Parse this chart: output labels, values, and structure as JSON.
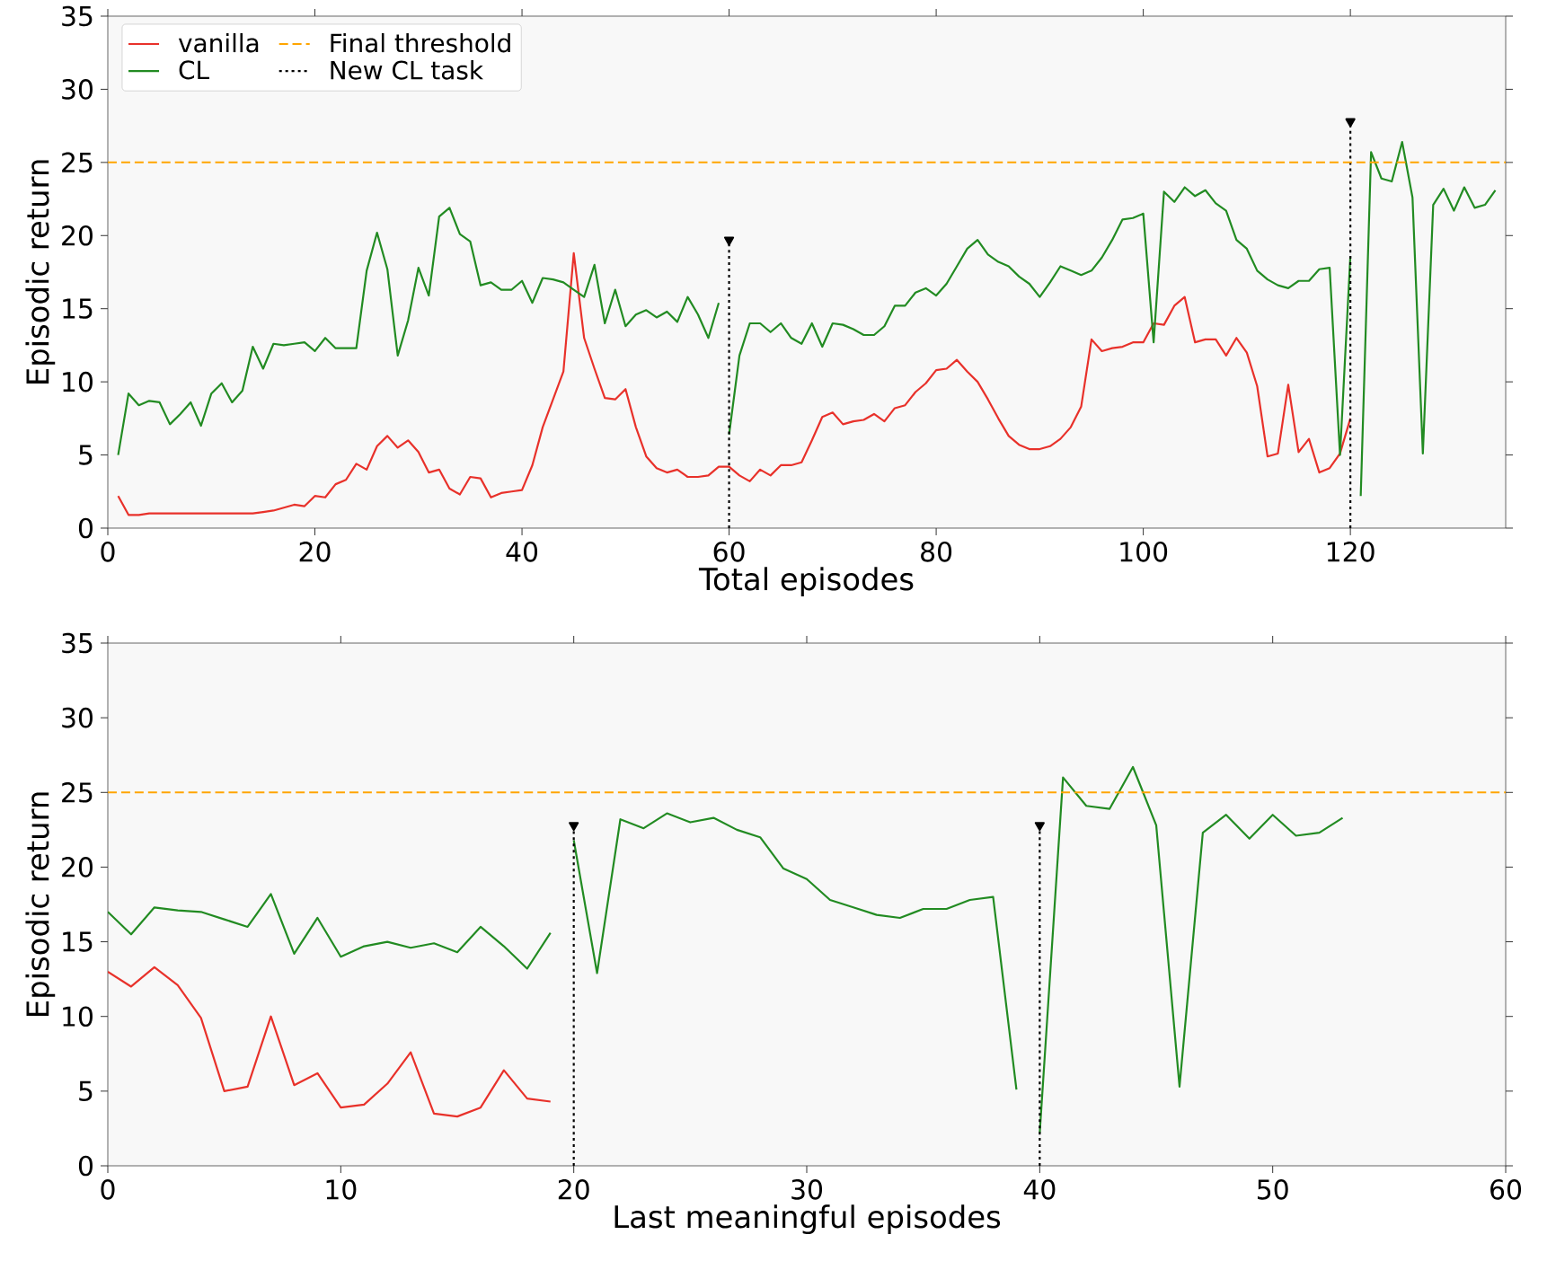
{
  "chart_data": [
    {
      "type": "line",
      "xlabel": "Total episodes",
      "ylabel": "Episodic return",
      "xlim": [
        0,
        135
      ],
      "xticks": [
        0,
        20,
        40,
        60,
        80,
        100,
        120
      ],
      "ylim": [
        0,
        35
      ],
      "yticks": [
        0,
        5,
        10,
        15,
        20,
        25,
        30,
        35
      ],
      "legend": "top left",
      "grid": false,
      "series": [
        {
          "name": "vanilla",
          "color": "#e8312a",
          "x": [
            1,
            2,
            3,
            4,
            5,
            6,
            7,
            8,
            9,
            10,
            11,
            12,
            13,
            14,
            15,
            16,
            17,
            18,
            19,
            20,
            21,
            22,
            23,
            24,
            25,
            26,
            27,
            28,
            29,
            30,
            31,
            32,
            33,
            34,
            35,
            36,
            37,
            38,
            39,
            40,
            41,
            42,
            43,
            44,
            45,
            46,
            47,
            48,
            49,
            50,
            51,
            52,
            53,
            54,
            55,
            56,
            57,
            58,
            59,
            60,
            61,
            62,
            63,
            64,
            65,
            66,
            67,
            68,
            69,
            70,
            71,
            72,
            73,
            74,
            75,
            76,
            77,
            78,
            79,
            80,
            81,
            82,
            83,
            84,
            85,
            86,
            87,
            88,
            89,
            90,
            91,
            92,
            93,
            94,
            95,
            96,
            97,
            98,
            99,
            100,
            101,
            102,
            103,
            104,
            105,
            106,
            107,
            108,
            109,
            110,
            111,
            112,
            113,
            114,
            115,
            116,
            117,
            118,
            119,
            120
          ],
          "values": [
            2.2,
            0.9,
            0.9,
            1.0,
            1.0,
            1.0,
            1.0,
            1.0,
            1.0,
            1.0,
            1.0,
            1.0,
            1.0,
            1.0,
            1.1,
            1.2,
            1.4,
            1.6,
            1.5,
            2.2,
            2.1,
            3.0,
            3.3,
            4.4,
            4.0,
            5.6,
            6.3,
            5.5,
            6.0,
            5.2,
            3.8,
            4.0,
            2.7,
            2.3,
            3.5,
            3.4,
            2.1,
            2.4,
            2.5,
            2.6,
            4.3,
            6.9,
            8.8,
            10.7,
            18.8,
            13.0,
            10.9,
            8.9,
            8.8,
            9.5,
            6.9,
            4.9,
            4.1,
            3.8,
            4.0,
            3.5,
            3.5,
            3.6,
            4.2,
            4.2,
            3.6,
            3.2,
            4.0,
            3.6,
            4.3,
            4.3,
            4.5,
            6.0,
            7.6,
            7.9,
            7.1,
            7.3,
            7.4,
            7.8,
            7.3,
            8.2,
            8.4,
            9.3,
            9.9,
            10.8,
            10.9,
            11.5,
            10.7,
            10.0,
            8.8,
            7.5,
            6.3,
            5.7,
            5.4,
            5.4,
            5.6,
            6.1,
            6.9,
            8.3,
            12.9,
            12.1,
            12.3,
            12.4,
            12.7,
            12.7,
            14.0,
            13.9,
            15.2,
            15.8,
            12.7,
            12.9,
            12.9,
            11.8,
            13.0,
            12.0,
            9.7,
            4.9,
            5.1,
            9.8,
            5.2,
            6.1,
            3.8,
            4.1,
            5.1,
            7.5
          ]
        },
        {
          "name": "CL",
          "color": "#228b22",
          "x": [
            1,
            2,
            3,
            4,
            5,
            6,
            7,
            8,
            9,
            10,
            11,
            12,
            13,
            14,
            15,
            16,
            17,
            18,
            19,
            20,
            21,
            22,
            23,
            24,
            25,
            26,
            27,
            28,
            29,
            30,
            31,
            32,
            33,
            34,
            35,
            36,
            37,
            38,
            39,
            40,
            41,
            42,
            43,
            44,
            45,
            46,
            47,
            48,
            49,
            50,
            51,
            52,
            53,
            54,
            55,
            56,
            57,
            58,
            59
          ],
          "values": [
            5.0,
            9.2,
            8.4,
            8.7,
            8.6,
            7.1,
            7.8,
            8.6,
            7.0,
            9.2,
            9.9,
            8.6,
            9.4,
            12.4,
            10.9,
            12.6,
            12.5,
            12.6,
            12.7,
            12.1,
            13.0,
            12.3,
            12.3,
            12.3,
            17.6,
            20.2,
            17.7,
            11.8,
            14.2,
            17.8,
            15.9,
            21.3,
            21.9,
            20.1,
            19.6,
            16.6,
            16.8,
            16.3,
            16.3,
            16.9,
            15.4,
            17.1,
            17.0,
            16.8,
            16.3,
            15.8,
            18.0,
            14.0,
            16.3,
            13.8,
            14.6,
            14.9,
            14.4,
            14.8,
            14.1,
            15.8,
            14.6,
            13.0,
            15.4
          ]
        },
        {
          "color": "#228b22",
          "x": [
            60,
            61,
            62,
            63,
            64,
            65,
            66,
            67,
            68,
            69,
            70,
            71,
            72,
            73,
            74,
            75,
            76,
            77,
            78,
            79,
            80,
            81,
            82,
            83,
            84,
            85,
            86,
            87,
            88,
            89,
            90,
            91,
            92,
            93,
            94,
            95,
            96,
            97,
            98,
            99,
            100,
            101,
            102,
            103,
            104,
            105,
            106,
            107,
            108,
            109,
            110,
            111,
            112,
            113,
            114,
            115,
            116,
            117,
            118,
            119,
            120
          ],
          "values": [
            6.4,
            11.8,
            14.0,
            14.0,
            13.4,
            14.0,
            13.0,
            12.6,
            14.0,
            12.4,
            14.0,
            13.9,
            13.6,
            13.2,
            13.2,
            13.8,
            15.2,
            15.2,
            16.1,
            16.4,
            15.9,
            16.7,
            17.9,
            19.1,
            19.7,
            18.7,
            18.2,
            17.9,
            17.2,
            16.7,
            15.8,
            16.8,
            17.9,
            17.6,
            17.3,
            17.6,
            18.5,
            19.7,
            21.1,
            21.2,
            21.5,
            12.7,
            23.0,
            22.3,
            23.3,
            22.7,
            23.1,
            22.2,
            21.7,
            19.7,
            19.1,
            17.6,
            17.0,
            16.6,
            16.4,
            16.9,
            16.9,
            17.7,
            17.8,
            5.0,
            18.6
          ]
        },
        {
          "color": "#228b22",
          "x": [
            121,
            122,
            123,
            124,
            125,
            126,
            127,
            128,
            129,
            130,
            131,
            132,
            133,
            134
          ],
          "values": [
            2.2,
            25.7,
            23.9,
            23.7,
            26.4,
            22.6,
            5.1,
            22.1,
            23.2,
            21.7,
            23.3,
            21.9,
            22.1,
            23.1
          ]
        },
        {
          "name": "New CL task",
          "color": "#000000",
          "line_style": "dotted",
          "marker": "triangle",
          "x": [
            60,
            60
          ],
          "values": [
            0,
            19.7
          ]
        },
        {
          "color": "#000000",
          "line_style": "dotted",
          "marker": "triangle",
          "x": [
            120,
            120
          ],
          "values": [
            0,
            27.8
          ]
        }
      ],
      "ref_lines": [
        {
          "axis": "y",
          "value": 25,
          "label": "Final threshold",
          "color": "#ffa500",
          "line_style": "dashed"
        }
      ]
    },
    {
      "type": "line",
      "xlabel": "Last meaningful episodes",
      "ylabel": "Episodic return",
      "xlim": [
        0,
        60
      ],
      "xticks": [
        0,
        10,
        20,
        30,
        40,
        50,
        60
      ],
      "ylim": [
        0,
        35
      ],
      "yticks": [
        0,
        5,
        10,
        15,
        20,
        25,
        30,
        35
      ],
      "grid": false,
      "series": [
        {
          "color": "#e8312a",
          "x": [
            0,
            1,
            2,
            3,
            4,
            5,
            6,
            7,
            8,
            9,
            10,
            11,
            12,
            13,
            14,
            15,
            16,
            17,
            18,
            19
          ],
          "values": [
            13.0,
            12.0,
            13.3,
            12.1,
            9.9,
            5.0,
            5.3,
            10.0,
            5.4,
            6.2,
            3.9,
            4.1,
            5.5,
            7.6,
            3.5,
            3.3,
            3.9,
            6.4,
            4.5,
            4.3
          ]
        },
        {
          "color": "#228b22",
          "x": [
            0,
            1,
            2,
            3,
            4,
            5,
            6,
            7,
            8,
            9,
            10,
            11,
            12,
            13,
            14,
            15,
            16,
            17,
            18,
            19
          ],
          "values": [
            17.0,
            15.5,
            17.3,
            17.1,
            17.0,
            16.5,
            16.0,
            18.2,
            14.2,
            16.6,
            14.0,
            14.7,
            15.0,
            14.6,
            14.9,
            14.3,
            16.0,
            14.7,
            13.2,
            15.6
          ]
        },
        {
          "color": "#228b22",
          "x": [
            20,
            21,
            22,
            23,
            24,
            25,
            26,
            27,
            28,
            29,
            30,
            31,
            32,
            33,
            34,
            35,
            36,
            37,
            38,
            39
          ],
          "values": [
            21.8,
            12.9,
            23.2,
            22.6,
            23.6,
            23.0,
            23.3,
            22.5,
            22.0,
            19.9,
            19.2,
            17.8,
            17.3,
            16.8,
            16.6,
            17.2,
            17.2,
            17.8,
            18.0,
            5.1
          ]
        },
        {
          "color": "#228b22",
          "x": [
            40,
            41,
            42,
            43,
            44,
            45,
            46,
            47,
            48,
            49,
            50,
            51,
            52,
            53
          ],
          "values": [
            2.2,
            26.0,
            24.1,
            23.9,
            26.7,
            22.8,
            5.3,
            22.3,
            23.5,
            21.9,
            23.5,
            22.1,
            22.3,
            23.3
          ]
        },
        {
          "color": "#000000",
          "line_style": "dotted",
          "marker": "triangle",
          "x": [
            20,
            20
          ],
          "values": [
            0,
            22.8
          ]
        },
        {
          "color": "#000000",
          "line_style": "dotted",
          "marker": "triangle",
          "x": [
            40,
            40
          ],
          "values": [
            0,
            22.8
          ]
        }
      ],
      "ref_lines": [
        {
          "axis": "y",
          "value": 25,
          "color": "#ffa500",
          "line_style": "dashed"
        }
      ]
    }
  ]
}
